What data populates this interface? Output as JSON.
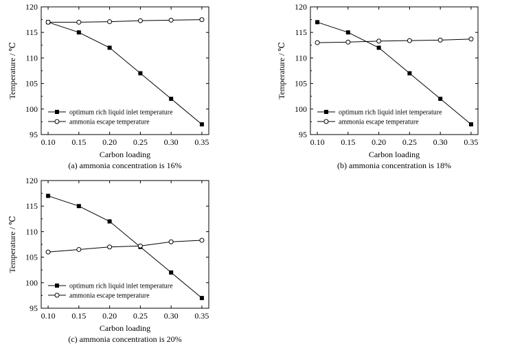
{
  "chart_data": [
    {
      "type": "line",
      "caption": "(a) ammonia concentration is 16%",
      "xlabel": "Carbon loading",
      "ylabel": "Temperature / ℃",
      "xlim": [
        0.1,
        0.35
      ],
      "ylim": [
        95,
        120
      ],
      "x_ticks": [
        "0.10",
        "0.15",
        "0.20",
        "0.25",
        "0.30",
        "0.35"
      ],
      "y_ticks": [
        "95",
        "100",
        "105",
        "110",
        "115",
        "120"
      ],
      "legend_position": "bottom-left",
      "x": [
        0.1,
        0.15,
        0.2,
        0.25,
        0.3,
        0.35
      ],
      "series": [
        {
          "name": "optimum rich liquid inlet temperature",
          "marker": "filled-square",
          "values": [
            117,
            115,
            112,
            107,
            102,
            97
          ]
        },
        {
          "name": "ammonia escape temperature",
          "marker": "open-circle",
          "values": [
            117,
            117,
            117.1,
            117.3,
            117.4,
            117.5
          ]
        }
      ]
    },
    {
      "type": "line",
      "caption": "(b) ammonia concentration is 18%",
      "xlabel": "Carbon loading",
      "ylabel": "Temperature / ℃",
      "xlim": [
        0.1,
        0.35
      ],
      "ylim": [
        95,
        120
      ],
      "x_ticks": [
        "0.10",
        "0.15",
        "0.20",
        "0.25",
        "0.30",
        "0.35"
      ],
      "y_ticks": [
        "95",
        "100",
        "105",
        "110",
        "115",
        "120"
      ],
      "legend_position": "bottom-left",
      "x": [
        0.1,
        0.15,
        0.2,
        0.25,
        0.3,
        0.35
      ],
      "series": [
        {
          "name": "optimum rich liquid inlet temperature",
          "marker": "filled-square",
          "values": [
            117,
            115,
            112,
            107,
            102,
            97
          ]
        },
        {
          "name": "ammonia escape temperature",
          "marker": "open-circle",
          "values": [
            113,
            113.1,
            113.3,
            113.4,
            113.5,
            113.7
          ]
        }
      ]
    },
    {
      "type": "line",
      "caption": "(c) ammonia concentration is 20%",
      "xlabel": "Carbon loading",
      "ylabel": "Temperature / ℃",
      "xlim": [
        0.1,
        0.35
      ],
      "ylim": [
        95,
        120
      ],
      "x_ticks": [
        "0.10",
        "0.15",
        "0.20",
        "0.25",
        "0.30",
        "0.35"
      ],
      "y_ticks": [
        "95",
        "100",
        "105",
        "110",
        "115",
        "120"
      ],
      "legend_position": "bottom-left",
      "x": [
        0.1,
        0.15,
        0.2,
        0.25,
        0.3,
        0.35
      ],
      "series": [
        {
          "name": "optimum rich liquid inlet temperature",
          "marker": "filled-square",
          "values": [
            117,
            115,
            112,
            107,
            102,
            97
          ]
        },
        {
          "name": "ammonia escape temperature",
          "marker": "open-circle",
          "values": [
            106,
            106.5,
            107,
            107.2,
            108,
            108.3
          ]
        }
      ]
    }
  ]
}
